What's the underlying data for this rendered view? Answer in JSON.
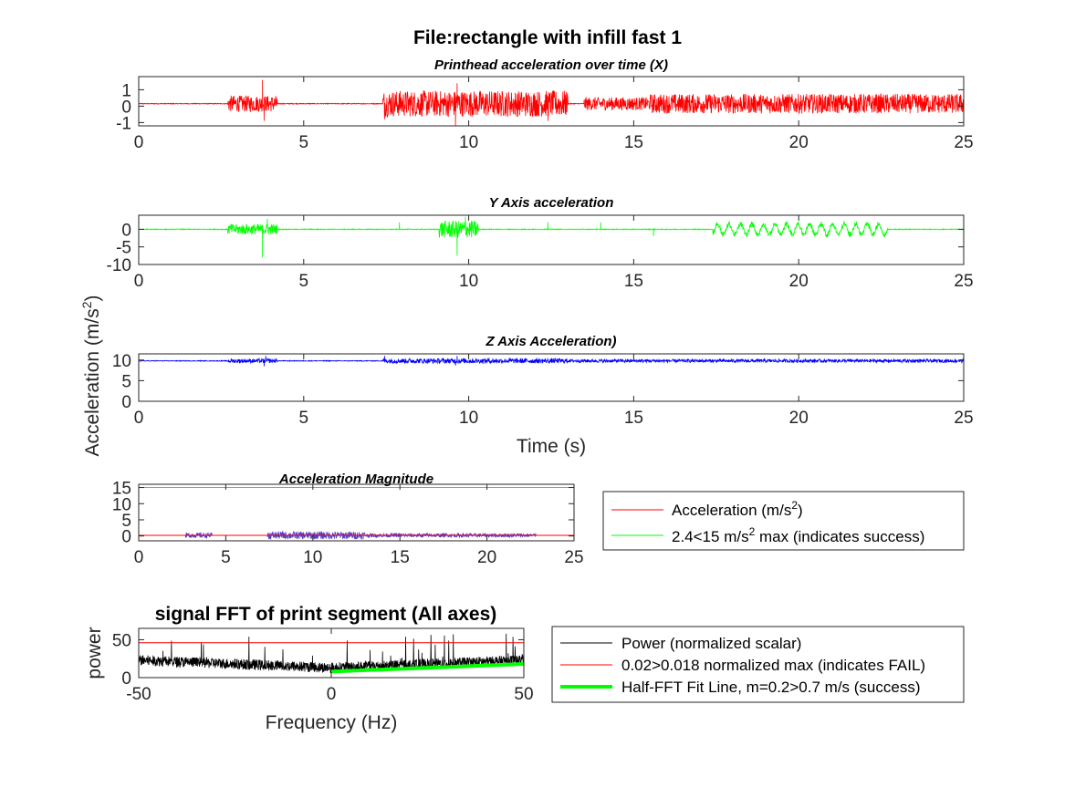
{
  "figure_title": "File:rectangle with infill fast 1",
  "shared_ylabel": "Acceleration (m/s",
  "shared_ylabel_sup": "2",
  "shared_ylabel_end": ")",
  "chart_data": [
    {
      "type": "line",
      "title": "Printhead acceleration over time (X)",
      "xlim": [
        0,
        25
      ],
      "ylim": [
        -1.2,
        1.8
      ],
      "xticks": [
        "0",
        "5",
        "10",
        "15",
        "20",
        "25"
      ],
      "yticks": [
        "1",
        "0",
        "-1"
      ],
      "ytick_values": [
        1,
        0,
        -1
      ],
      "xlabel": "",
      "ylabel": "",
      "color": "#ff0000",
      "baseline": 0.15,
      "active_segments": [
        [
          2.7,
          4.2,
          0.5
        ],
        [
          7.4,
          13.0,
          0.8
        ],
        [
          13.5,
          15.5,
          0.4
        ],
        [
          15.5,
          25.0,
          0.6
        ]
      ],
      "spikes": [
        [
          3.75,
          1.6
        ],
        [
          3.8,
          -0.9
        ],
        [
          7.45,
          -0.8
        ],
        [
          9.6,
          -1.2
        ],
        [
          9.65,
          1.4
        ],
        [
          12.4,
          -0.9
        ]
      ]
    },
    {
      "type": "line",
      "title": "Y Axis acceleration",
      "xlim": [
        0,
        25
      ],
      "ylim": [
        -10,
        4
      ],
      "xticks": [
        "0",
        "5",
        "10",
        "15",
        "20",
        "25"
      ],
      "yticks": [
        "0",
        "-5",
        "-10"
      ],
      "ytick_values": [
        0,
        -5,
        -10
      ],
      "xlabel": "",
      "ylabel": "",
      "color": "#00ff00",
      "baseline": 0,
      "active_segments": [
        [
          2.7,
          4.2,
          1.5
        ],
        [
          9.1,
          10.3,
          2.5
        ],
        [
          17.4,
          22.7,
          2.5
        ]
      ],
      "spikes": [
        [
          3.75,
          -8
        ],
        [
          3.9,
          3
        ],
        [
          9.65,
          -7.5
        ],
        [
          9.9,
          3.5
        ],
        [
          7.9,
          2
        ],
        [
          12.4,
          2
        ],
        [
          14.0,
          2
        ],
        [
          15.6,
          -2
        ]
      ]
    },
    {
      "type": "line",
      "title": "Z Axis Acceleration)",
      "xlim": [
        0,
        25
      ],
      "ylim": [
        0,
        11.5
      ],
      "xticks": [
        "0",
        "5",
        "10",
        "15",
        "20",
        "25"
      ],
      "yticks": [
        "10",
        "5",
        "0"
      ],
      "ytick_values": [
        10,
        5,
        0
      ],
      "xlabel": "Time (s)",
      "ylabel": "",
      "color": "#0000ff",
      "baseline": 9.8,
      "active_segments": [
        [
          2.7,
          4.2,
          0.5
        ],
        [
          7.4,
          13.0,
          0.6
        ],
        [
          13.0,
          25.0,
          0.4
        ]
      ],
      "spikes": [
        [
          3.8,
          8.5
        ],
        [
          3.85,
          11.0
        ],
        [
          9.6,
          8.7
        ],
        [
          9.65,
          11.0
        ],
        [
          7.45,
          11.0
        ]
      ]
    },
    {
      "type": "line",
      "title": "Acceleration Magnitude",
      "xlim": [
        0,
        25
      ],
      "ylim": [
        -1.5,
        16
      ],
      "xticks": [
        "0",
        "5",
        "10",
        "15",
        "20",
        "25"
      ],
      "yticks": [
        "15",
        "10",
        "5",
        "0"
      ],
      "ytick_values": [
        15,
        10,
        5,
        0
      ],
      "xlabel": "",
      "ylabel": "",
      "series": [
        {
          "name": "Acceleration (m/s",
          "name_sup": "2",
          "name_end": ")",
          "color": "#ff0000",
          "style": "flat",
          "value": 0.2
        },
        {
          "name": "2.4<15 m/s",
          "name_sup": "2",
          "name_end": " max (indicates success)",
          "color": "#00ff00",
          "style": "flat",
          "value": 15
        }
      ],
      "noise_color": "#5040d0",
      "noise_segments": [
        [
          2.7,
          4.2,
          0.8
        ],
        [
          7.4,
          13.0,
          1.2
        ],
        [
          13.0,
          22.8,
          0.6
        ]
      ],
      "legend": "right"
    },
    {
      "type": "line",
      "title": "signal FFT of print segment (All axes)",
      "xlim": [
        -50,
        50
      ],
      "ylim": [
        0,
        65
      ],
      "xticks": [
        "-50",
        "0",
        "50"
      ],
      "xtick_values": [
        -50,
        0,
        50
      ],
      "yticks": [
        "50",
        "0"
      ],
      "ytick_values": [
        50,
        0
      ],
      "xlabel": "Frequency (Hz)",
      "ylabel": "power",
      "series": [
        {
          "name": "Power (normalized scalar)",
          "color": "#000000"
        },
        {
          "name": "0.02>0.018 normalized max (indicates FAIL)",
          "color": "#ff0000",
          "value": 46
        },
        {
          "name": "Half-FFT Fit Line, m=0.2>0.7 m/s (success)",
          "color": "#00ff00",
          "x": [
            0,
            50
          ],
          "y": [
            8,
            18
          ]
        }
      ],
      "legend": "right"
    }
  ]
}
